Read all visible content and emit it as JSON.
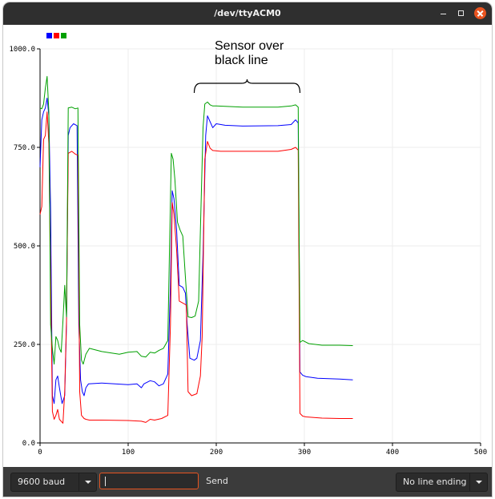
{
  "window": {
    "title": "/dev/ttyACM0"
  },
  "controls": {
    "baud_label": "9600 baud",
    "send_value": "",
    "send_label": "Send",
    "line_ending_label": "No line ending"
  },
  "annotation": {
    "line1": "Sensor over",
    "line2": "black line"
  },
  "colors": {
    "series_1": "#0000ff",
    "series_2": "#ff0000",
    "series_3": "#00a000"
  },
  "chart_data": {
    "type": "line",
    "xlim": [
      0,
      500
    ],
    "ylim": [
      0,
      1000
    ],
    "x_ticks": [
      0,
      100,
      200,
      300,
      400,
      500
    ],
    "x_tick_labels": [
      "0",
      "100",
      "200",
      "300",
      "400",
      "500"
    ],
    "y_ticks": [
      0,
      250,
      500,
      750,
      1000
    ],
    "y_tick_labels": [
      "0.0",
      "250.0",
      "500.0",
      "750.0",
      "1000.0"
    ],
    "grid": true,
    "legend": "top-left",
    "annotations": [
      {
        "text_lines": [
          "Sensor over",
          "black line"
        ],
        "x_range": [
          175,
          295
        ]
      }
    ],
    "series": [
      {
        "color": "#0000ff",
        "points": [
          [
            0,
            700
          ],
          [
            2,
            820
          ],
          [
            4,
            840
          ],
          [
            6,
            850
          ],
          [
            8,
            875
          ],
          [
            10,
            830
          ],
          [
            12,
            590
          ],
          [
            14,
            120
          ],
          [
            16,
            100
          ],
          [
            18,
            160
          ],
          [
            20,
            170
          ],
          [
            22,
            140
          ],
          [
            25,
            100
          ],
          [
            28,
            120
          ],
          [
            30,
            300
          ],
          [
            32,
            780
          ],
          [
            34,
            800
          ],
          [
            38,
            810
          ],
          [
            42,
            805
          ],
          [
            44,
            300
          ],
          [
            46,
            160
          ],
          [
            48,
            130
          ],
          [
            50,
            120
          ],
          [
            52,
            140
          ],
          [
            55,
            150
          ],
          [
            70,
            152
          ],
          [
            100,
            148
          ],
          [
            110,
            150
          ],
          [
            115,
            140
          ],
          [
            118,
            150
          ],
          [
            125,
            158
          ],
          [
            130,
            155
          ],
          [
            135,
            145
          ],
          [
            140,
            150
          ],
          [
            145,
            175
          ],
          [
            148,
            400
          ],
          [
            150,
            640
          ],
          [
            152,
            620
          ],
          [
            155,
            540
          ],
          [
            158,
            400
          ],
          [
            162,
            395
          ],
          [
            165,
            380
          ],
          [
            167,
            300
          ],
          [
            170,
            215
          ],
          [
            175,
            210
          ],
          [
            178,
            215
          ],
          [
            182,
            260
          ],
          [
            185,
            480
          ],
          [
            188,
            780
          ],
          [
            190,
            830
          ],
          [
            193,
            815
          ],
          [
            196,
            800
          ],
          [
            200,
            810
          ],
          [
            210,
            806
          ],
          [
            230,
            804
          ],
          [
            270,
            805
          ],
          [
            285,
            808
          ],
          [
            290,
            820
          ],
          [
            293,
            812
          ],
          [
            295,
            180
          ],
          [
            298,
            172
          ],
          [
            302,
            168
          ],
          [
            315,
            164
          ],
          [
            340,
            162
          ],
          [
            355,
            160
          ]
        ]
      },
      {
        "color": "#ff0000",
        "points": [
          [
            0,
            580
          ],
          [
            2,
            600
          ],
          [
            4,
            770
          ],
          [
            6,
            780
          ],
          [
            8,
            840
          ],
          [
            10,
            760
          ],
          [
            12,
            420
          ],
          [
            14,
            80
          ],
          [
            16,
            60
          ],
          [
            18,
            70
          ],
          [
            20,
            85
          ],
          [
            22,
            60
          ],
          [
            26,
            50
          ],
          [
            28,
            130
          ],
          [
            30,
            310
          ],
          [
            32,
            735
          ],
          [
            36,
            740
          ],
          [
            40,
            733
          ],
          [
            43,
            730
          ],
          [
            45,
            130
          ],
          [
            47,
            70
          ],
          [
            50,
            62
          ],
          [
            52,
            60
          ],
          [
            56,
            58
          ],
          [
            70,
            58
          ],
          [
            100,
            57
          ],
          [
            115,
            55
          ],
          [
            120,
            52
          ],
          [
            125,
            60
          ],
          [
            130,
            58
          ],
          [
            138,
            62
          ],
          [
            145,
            70
          ],
          [
            148,
            300
          ],
          [
            150,
            610
          ],
          [
            152,
            580
          ],
          [
            155,
            490
          ],
          [
            158,
            360
          ],
          [
            162,
            355
          ],
          [
            166,
            350
          ],
          [
            168,
            130
          ],
          [
            172,
            120
          ],
          [
            178,
            125
          ],
          [
            182,
            170
          ],
          [
            184,
            270
          ],
          [
            187,
            720
          ],
          [
            190,
            765
          ],
          [
            193,
            748
          ],
          [
            196,
            742
          ],
          [
            205,
            740
          ],
          [
            230,
            740
          ],
          [
            270,
            740
          ],
          [
            285,
            745
          ],
          [
            290,
            750
          ],
          [
            293,
            743
          ],
          [
            295,
            75
          ],
          [
            298,
            68
          ],
          [
            302,
            66
          ],
          [
            320,
            63
          ],
          [
            340,
            62
          ],
          [
            355,
            62
          ]
        ]
      },
      {
        "color": "#00a000",
        "points": [
          [
            0,
            850
          ],
          [
            2,
            848
          ],
          [
            4,
            860
          ],
          [
            6,
            900
          ],
          [
            8,
            930
          ],
          [
            10,
            840
          ],
          [
            12,
            300
          ],
          [
            14,
            240
          ],
          [
            16,
            200
          ],
          [
            18,
            270
          ],
          [
            20,
            260
          ],
          [
            22,
            240
          ],
          [
            24,
            230
          ],
          [
            26,
            310
          ],
          [
            28,
            400
          ],
          [
            30,
            320
          ],
          [
            32,
            850
          ],
          [
            36,
            852
          ],
          [
            40,
            848
          ],
          [
            43,
            850
          ],
          [
            45,
            300
          ],
          [
            47,
            210
          ],
          [
            49,
            200
          ],
          [
            52,
            225
          ],
          [
            56,
            240
          ],
          [
            70,
            232
          ],
          [
            90,
            225
          ],
          [
            100,
            230
          ],
          [
            110,
            232
          ],
          [
            115,
            220
          ],
          [
            120,
            218
          ],
          [
            125,
            230
          ],
          [
            130,
            228
          ],
          [
            135,
            235
          ],
          [
            140,
            240
          ],
          [
            145,
            260
          ],
          [
            147,
            500
          ],
          [
            149,
            735
          ],
          [
            151,
            720
          ],
          [
            153,
            670
          ],
          [
            156,
            560
          ],
          [
            159,
            540
          ],
          [
            162,
            525
          ],
          [
            165,
            420
          ],
          [
            168,
            320
          ],
          [
            172,
            318
          ],
          [
            176,
            322
          ],
          [
            180,
            360
          ],
          [
            182,
            540
          ],
          [
            185,
            800
          ],
          [
            187,
            860
          ],
          [
            190,
            865
          ],
          [
            193,
            858
          ],
          [
            196,
            855
          ],
          [
            200,
            855
          ],
          [
            230,
            852
          ],
          [
            270,
            852
          ],
          [
            285,
            855
          ],
          [
            290,
            858
          ],
          [
            293,
            852
          ],
          [
            295,
            255
          ],
          [
            298,
            260
          ],
          [
            305,
            252
          ],
          [
            320,
            248
          ],
          [
            340,
            248
          ],
          [
            355,
            247
          ]
        ]
      }
    ]
  }
}
